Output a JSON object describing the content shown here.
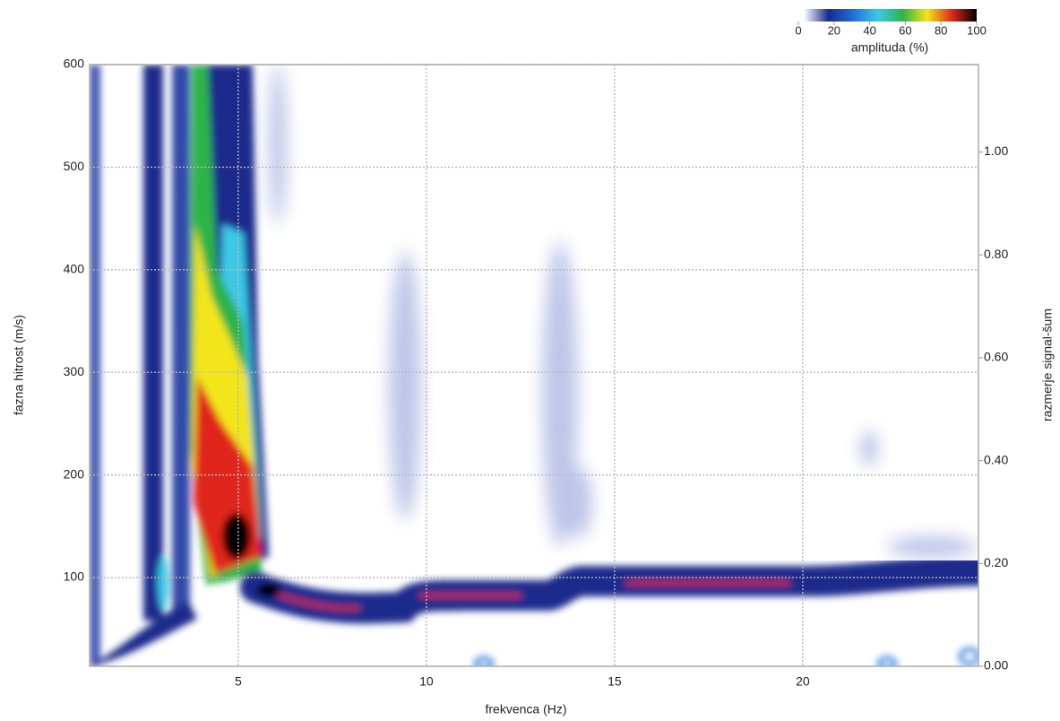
{
  "chart_data": {
    "type": "heatmap",
    "x_label": "frekvenca (Hz)",
    "y_label": "fazna hitrost (m/s)",
    "y2_label": "razmerje signal-šum",
    "xlim": [
      1.05,
      24.67
    ],
    "xticks": [
      5,
      10,
      15,
      20
    ],
    "ylim": [
      13.5,
      600
    ],
    "yticks": [
      100,
      200,
      300,
      400,
      500,
      600
    ],
    "y2lim": [
      0,
      1.17
    ],
    "y2ticks": [
      {
        "value": 0,
        "label": "0.00"
      },
      {
        "value": 0.2,
        "label": "0.20"
      },
      {
        "value": 0.4,
        "label": "0.40"
      },
      {
        "value": 0.6,
        "label": "0.60"
      },
      {
        "value": 0.8,
        "label": "0.80"
      },
      {
        "value": 1,
        "label": "1.00"
      }
    ],
    "grid": true,
    "colorbar": {
      "label": "amplituda (%)",
      "lim": [
        0,
        100
      ],
      "ticks": [
        0,
        20,
        40,
        60,
        80,
        100
      ],
      "colors": [
        "#ffffff",
        "#1a2a8c",
        "#1f6fd8",
        "#3cc8e6",
        "#2fb34a",
        "#f2e51a",
        "#e0281a",
        "#000000"
      ]
    }
  }
}
